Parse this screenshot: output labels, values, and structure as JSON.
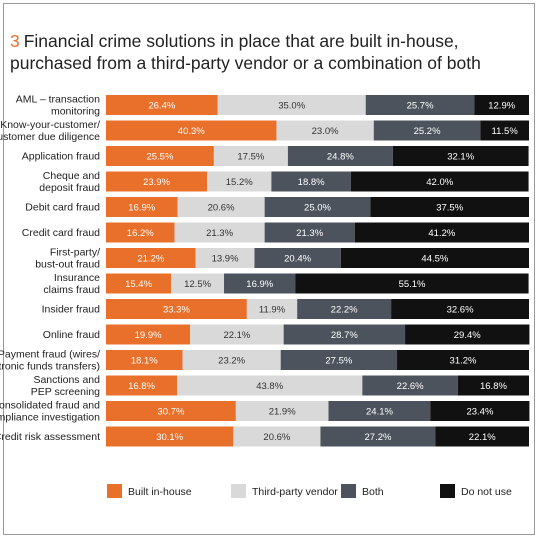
{
  "title": {
    "number": "3",
    "text": "Financial crime solutions in place that are built in-house, purchased from a third-party vendor or a combination of both"
  },
  "colors": {
    "Built in-house": "#e8702a",
    "Third-party vendor": "#d9d9d9",
    "Both": "#4d535c",
    "Do not use": "#111111"
  },
  "chart_data": {
    "type": "bar",
    "orientation": "horizontal",
    "stacked": true,
    "xlim": [
      0,
      100
    ],
    "legend_position": "bottom",
    "categories": [
      [
        "AML – transaction",
        "monitoring"
      ],
      [
        "Know-your-customer/",
        "Customer due diligence"
      ],
      [
        "Application fraud"
      ],
      [
        "Cheque and",
        "deposit fraud"
      ],
      [
        "Debit card fraud"
      ],
      [
        "Credit card fraud"
      ],
      [
        "First-party/",
        "bust-out fraud"
      ],
      [
        "Insurance",
        "claims fraud"
      ],
      [
        "Insider fraud"
      ],
      [
        "Online fraud"
      ],
      [
        "Payment fraud (wires/",
        "electronic funds transfers)"
      ],
      [
        "Sanctions and",
        "PEP screening"
      ],
      [
        "Consolidated fraud and",
        "compliance investigation"
      ],
      [
        "Credit risk assessment"
      ]
    ],
    "series": [
      {
        "name": "Built in-house",
        "values": [
          26.4,
          40.3,
          25.5,
          23.9,
          16.9,
          16.2,
          21.2,
          15.4,
          33.3,
          19.9,
          18.1,
          16.8,
          30.7,
          30.1
        ]
      },
      {
        "name": "Third-party vendor",
        "values": [
          35.0,
          23.0,
          17.5,
          15.2,
          20.6,
          21.3,
          13.9,
          12.5,
          11.9,
          22.1,
          23.2,
          43.8,
          21.9,
          20.6
        ]
      },
      {
        "name": "Both",
        "values": [
          25.7,
          25.2,
          24.8,
          18.8,
          25.0,
          21.3,
          20.4,
          16.9,
          22.2,
          28.7,
          27.5,
          22.6,
          24.1,
          27.2
        ]
      },
      {
        "name": "Do not use",
        "values": [
          12.9,
          11.5,
          32.1,
          42.0,
          37.5,
          41.2,
          44.5,
          55.1,
          32.6,
          29.4,
          31.2,
          16.8,
          23.4,
          22.1
        ]
      }
    ]
  }
}
